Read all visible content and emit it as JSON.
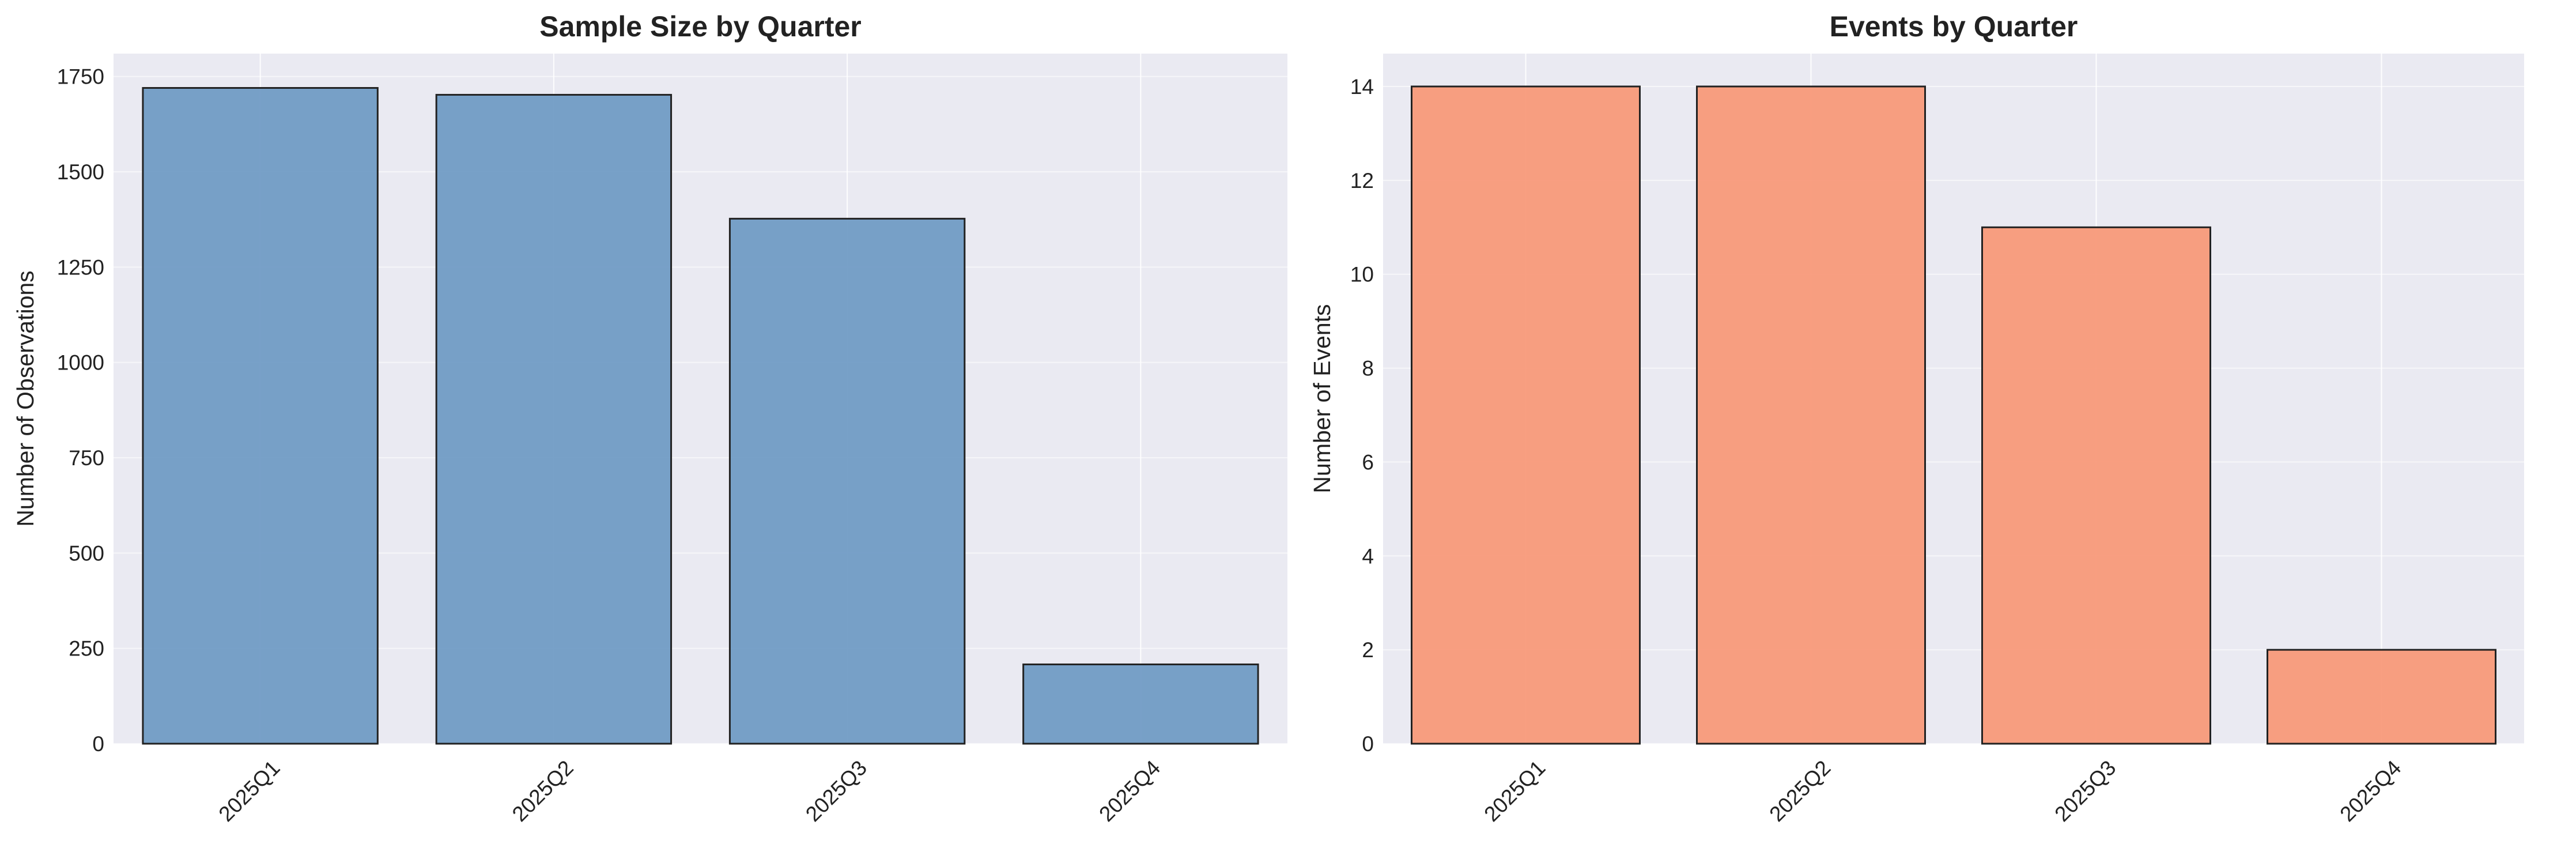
{
  "chart_data": [
    {
      "type": "bar",
      "title": "Sample Size by Quarter",
      "xlabel": "",
      "ylabel": "Number of Observations",
      "categories": [
        "2025Q1",
        "2025Q2",
        "2025Q3",
        "2025Q4"
      ],
      "values": [
        1720,
        1702,
        1377,
        208
      ],
      "ylim": [
        0,
        1810
      ],
      "yticks": [
        0,
        250,
        500,
        750,
        1000,
        1250,
        1500,
        1750
      ],
      "color": "#6c99c3",
      "grid": true,
      "legend": "none"
    },
    {
      "type": "bar",
      "title": "Events by Quarter",
      "xlabel": "",
      "ylabel": "Number of Events",
      "categories": [
        "2025Q1",
        "2025Q2",
        "2025Q3",
        "2025Q4"
      ],
      "values": [
        14,
        14,
        11,
        2
      ],
      "ylim": [
        0,
        14.7
      ],
      "yticks": [
        0,
        2,
        4,
        6,
        8,
        10,
        12,
        14
      ],
      "color": "#f79776",
      "grid": true,
      "legend": "none"
    }
  ]
}
